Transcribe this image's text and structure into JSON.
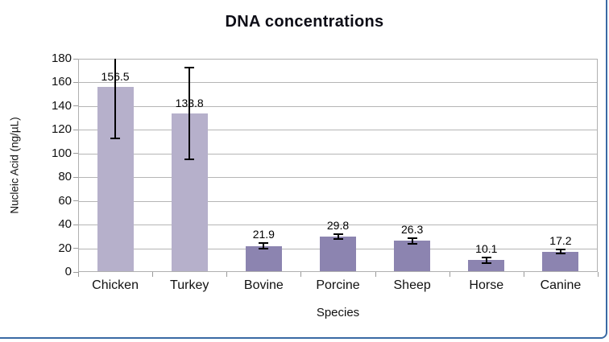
{
  "chart_data": {
    "type": "bar",
    "title": "DNA concentrations",
    "xlabel": "Species",
    "ylabel": "Nucleic Acid (ng/µL)",
    "categories": [
      "Chicken",
      "Turkey",
      "Bovine",
      "Porcine",
      "Sheep",
      "Horse",
      "Canine"
    ],
    "values": [
      156.5,
      133.8,
      21.9,
      29.8,
      26.3,
      10.1,
      17.2
    ],
    "value_labels": [
      "156.5",
      "133.8",
      "21.9",
      "29.8",
      "26.3",
      "10.1",
      "17.2"
    ],
    "errors": [
      43.5,
      39,
      2.5,
      1.8,
      2.3,
      2.3,
      1.8
    ],
    "bar_colors": [
      "#b6b0cb",
      "#b6b0cb",
      "#8c84b0",
      "#8c84b0",
      "#8c84b0",
      "#8c84b0",
      "#8c84b0"
    ],
    "ylim": [
      0,
      180
    ],
    "yticks": [
      0,
      20,
      40,
      60,
      80,
      100,
      120,
      140,
      160,
      180
    ],
    "ytick_labels": [
      "0",
      "20",
      "40",
      "60",
      "80",
      "100",
      "120",
      "140",
      "160",
      "180"
    ],
    "grid": true,
    "legend": "none",
    "error_bar_color": "#000000"
  },
  "colors": {
    "bar_light": "#b6b0cb",
    "bar_dark": "#8c84b0",
    "gridline": "#b5b5b5",
    "plot_border": "#b0b0b0",
    "frame_blue": "#3a6aa4",
    "title_text": "#0d0d16",
    "axis_text": "#111111"
  }
}
